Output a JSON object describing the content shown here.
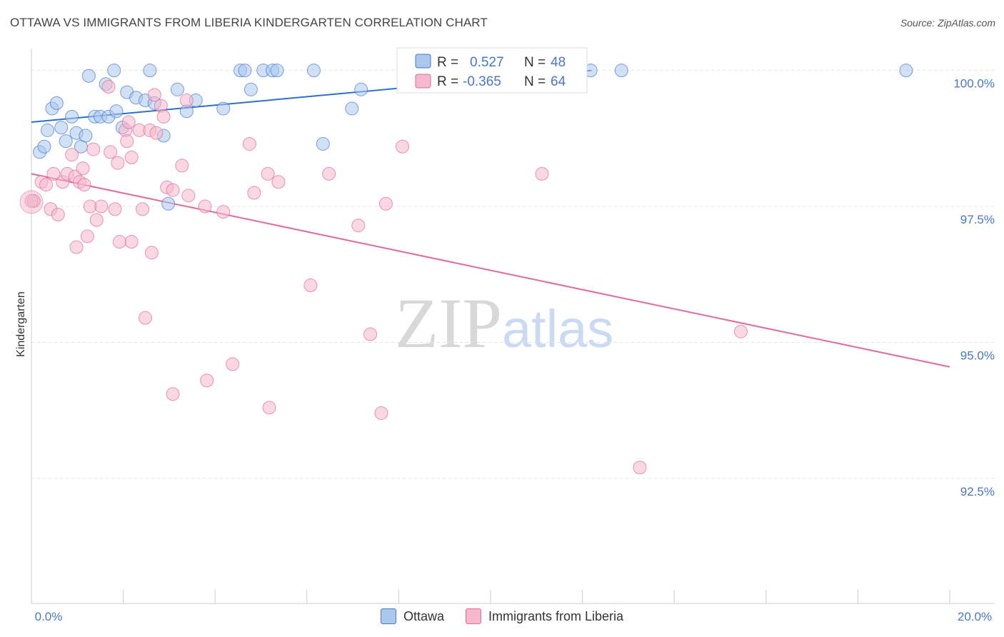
{
  "title": "OTTAWA VS IMMIGRANTS FROM LIBERIA KINDERGARTEN CORRELATION CHART",
  "source": "Source: ZipAtlas.com",
  "watermark": {
    "zip": "ZIP",
    "atlas": "atlas"
  },
  "colors": {
    "blue": "#4a78c8",
    "blue_fill": "#aac8ee",
    "blue_line": "#2f6fcc",
    "pink": "#e06a98",
    "pink_fill": "#f5b8cc",
    "pink_line": "#e06a98"
  },
  "legend": [
    {
      "r_label": "R =",
      "r_value": "0.527",
      "n_label": "N =",
      "n_value": "48"
    },
    {
      "r_label": "R =",
      "r_value": "-0.365",
      "n_label": "N =",
      "n_value": "64"
    }
  ],
  "chart_data": {
    "type": "scatter",
    "title": "OTTAWA VS IMMIGRANTS FROM LIBERIA KINDERGARTEN CORRELATION CHART",
    "xlabel": "",
    "ylabel": "Kindergarten",
    "xlim": [
      0,
      20
    ],
    "ylim": [
      90.2,
      100.35
    ],
    "x_tick_labels": [
      "0.0%",
      "20.0%"
    ],
    "y_ticks": [
      92.5,
      95.0,
      97.5,
      100.0
    ],
    "y_tick_labels": [
      "92.5%",
      "95.0%",
      "97.5%",
      "100.0%"
    ],
    "grid": true,
    "legend_position": "top-center",
    "series": [
      {
        "name": "Ottawa",
        "color": "#4a78c8",
        "trend": {
          "x": [
            0.0,
            12.2
          ],
          "y": [
            99.05,
            100.0
          ]
        },
        "points": [
          [
            0.05,
            97.6
          ],
          [
            0.18,
            98.5
          ],
          [
            0.28,
            98.6
          ],
          [
            0.35,
            98.9
          ],
          [
            0.45,
            99.3
          ],
          [
            0.55,
            99.4
          ],
          [
            0.65,
            98.95
          ],
          [
            0.75,
            98.7
          ],
          [
            0.88,
            99.15
          ],
          [
            0.98,
            98.85
          ],
          [
            1.08,
            98.6
          ],
          [
            1.18,
            98.8
          ],
          [
            1.25,
            99.9
          ],
          [
            1.38,
            99.15
          ],
          [
            1.5,
            99.15
          ],
          [
            1.68,
            99.15
          ],
          [
            1.85,
            99.25
          ],
          [
            1.98,
            98.95
          ],
          [
            1.62,
            99.75
          ],
          [
            1.8,
            100.0
          ],
          [
            2.08,
            99.6
          ],
          [
            2.28,
            99.5
          ],
          [
            2.48,
            99.45
          ],
          [
            2.58,
            100.0
          ],
          [
            2.68,
            99.4
          ],
          [
            2.88,
            98.8
          ],
          [
            2.98,
            97.55
          ],
          [
            3.18,
            99.65
          ],
          [
            3.38,
            99.25
          ],
          [
            3.58,
            99.45
          ],
          [
            4.18,
            99.3
          ],
          [
            4.55,
            100.0
          ],
          [
            4.65,
            100.0
          ],
          [
            4.78,
            99.65
          ],
          [
            5.05,
            100.0
          ],
          [
            5.25,
            100.0
          ],
          [
            5.35,
            100.0
          ],
          [
            6.15,
            100.0
          ],
          [
            6.35,
            98.65
          ],
          [
            6.98,
            99.3
          ],
          [
            7.18,
            99.65
          ],
          [
            8.95,
            100.0
          ],
          [
            9.28,
            100.0
          ],
          [
            10.05,
            99.85
          ],
          [
            11.95,
            100.0
          ],
          [
            12.18,
            100.0
          ],
          [
            12.85,
            100.0
          ],
          [
            19.05,
            100.0
          ]
        ]
      },
      {
        "name": "Immigrants from Liberia",
        "color": "#e06a98",
        "trend": {
          "x": [
            0.0,
            20.0
          ],
          "y": [
            98.1,
            94.55
          ]
        },
        "points": [
          [
            0.05,
            97.6
          ],
          [
            0.22,
            97.95
          ],
          [
            0.32,
            97.9
          ],
          [
            0.42,
            97.45
          ],
          [
            0.48,
            98.1
          ],
          [
            0.58,
            97.35
          ],
          [
            0.68,
            97.95
          ],
          [
            0.78,
            98.1
          ],
          [
            0.88,
            98.45
          ],
          [
            0.95,
            98.05
          ],
          [
            0.98,
            96.75
          ],
          [
            1.05,
            97.95
          ],
          [
            1.12,
            98.2
          ],
          [
            1.15,
            97.9
          ],
          [
            1.22,
            96.95
          ],
          [
            1.28,
            97.5
          ],
          [
            1.35,
            98.55
          ],
          [
            1.42,
            97.25
          ],
          [
            1.52,
            97.5
          ],
          [
            1.68,
            99.7
          ],
          [
            1.72,
            98.5
          ],
          [
            1.82,
            97.45
          ],
          [
            1.88,
            98.3
          ],
          [
            1.92,
            96.85
          ],
          [
            2.05,
            98.9
          ],
          [
            2.08,
            98.7
          ],
          [
            2.12,
            99.05
          ],
          [
            2.18,
            98.4
          ],
          [
            2.18,
            96.85
          ],
          [
            2.35,
            98.9
          ],
          [
            2.42,
            97.45
          ],
          [
            2.48,
            95.45
          ],
          [
            2.58,
            98.9
          ],
          [
            2.62,
            96.65
          ],
          [
            2.68,
            99.55
          ],
          [
            2.72,
            98.85
          ],
          [
            2.82,
            99.35
          ],
          [
            2.88,
            99.15
          ],
          [
            2.95,
            97.85
          ],
          [
            3.08,
            97.8
          ],
          [
            3.08,
            94.05
          ],
          [
            3.28,
            98.25
          ],
          [
            3.38,
            99.45
          ],
          [
            3.42,
            97.7
          ],
          [
            3.78,
            97.5
          ],
          [
            3.82,
            94.3
          ],
          [
            4.18,
            97.4
          ],
          [
            4.38,
            94.6
          ],
          [
            4.75,
            98.65
          ],
          [
            4.85,
            97.75
          ],
          [
            5.15,
            98.1
          ],
          [
            5.18,
            93.8
          ],
          [
            5.38,
            97.95
          ],
          [
            6.08,
            96.05
          ],
          [
            6.48,
            98.1
          ],
          [
            7.12,
            97.15
          ],
          [
            7.38,
            95.15
          ],
          [
            7.62,
            93.7
          ],
          [
            7.72,
            97.55
          ],
          [
            8.08,
            98.6
          ],
          [
            11.12,
            98.1
          ],
          [
            13.25,
            92.7
          ],
          [
            15.45,
            95.2
          ],
          [
            0.0,
            97.6
          ]
        ]
      }
    ]
  },
  "bottom_legend": [
    {
      "label": "Ottawa"
    },
    {
      "label": "Immigrants from Liberia"
    }
  ]
}
